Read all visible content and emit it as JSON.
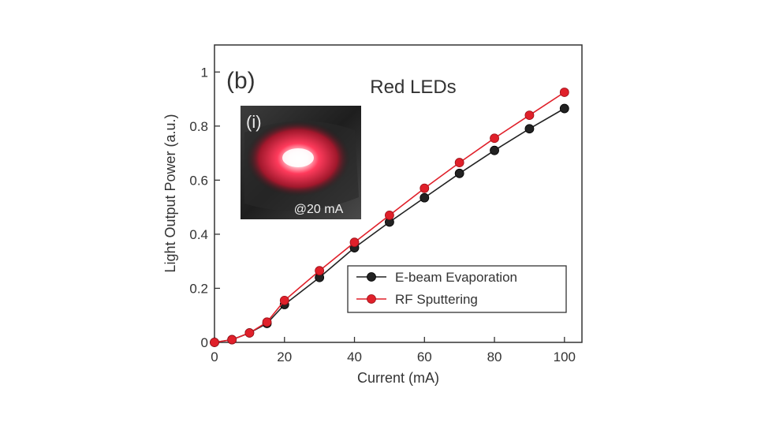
{
  "chart_data": {
    "type": "line",
    "panel_label": "(b)",
    "title": "Red LEDs",
    "xlabel": "Current (mA)",
    "ylabel": "Light Output Power (a.u.)",
    "xlim": [
      0,
      105
    ],
    "ylim": [
      0,
      1.1
    ],
    "xticks": [
      0,
      20,
      40,
      60,
      80,
      100
    ],
    "yticks": [
      0,
      0.2,
      0.4,
      0.6,
      0.8,
      1
    ],
    "ytick_labels": [
      "0",
      "0.2",
      "0.4",
      "0.6",
      "0.8",
      "1"
    ],
    "grid": false,
    "legend_position": "lower-right",
    "series": [
      {
        "name": "E-beam Evaporation",
        "color": "#222222",
        "x": [
          0,
          5,
          10,
          15,
          20,
          30,
          40,
          50,
          60,
          70,
          80,
          90,
          100
        ],
        "y": [
          0.0,
          0.01,
          0.035,
          0.07,
          0.14,
          0.24,
          0.35,
          0.445,
          0.535,
          0.625,
          0.71,
          0.79,
          0.865
        ]
      },
      {
        "name": "RF Sputtering",
        "color": "#e0202a",
        "x": [
          0,
          5,
          10,
          15,
          20,
          30,
          40,
          50,
          60,
          70,
          80,
          90,
          100
        ],
        "y": [
          0.0,
          0.01,
          0.035,
          0.075,
          0.155,
          0.265,
          0.37,
          0.47,
          0.57,
          0.665,
          0.755,
          0.84,
          0.925
        ]
      }
    ],
    "inset": {
      "label": "(i)",
      "caption": "@20 mA",
      "glow_color": "#ff3b5c",
      "content": "photo of glowing red LED"
    }
  }
}
